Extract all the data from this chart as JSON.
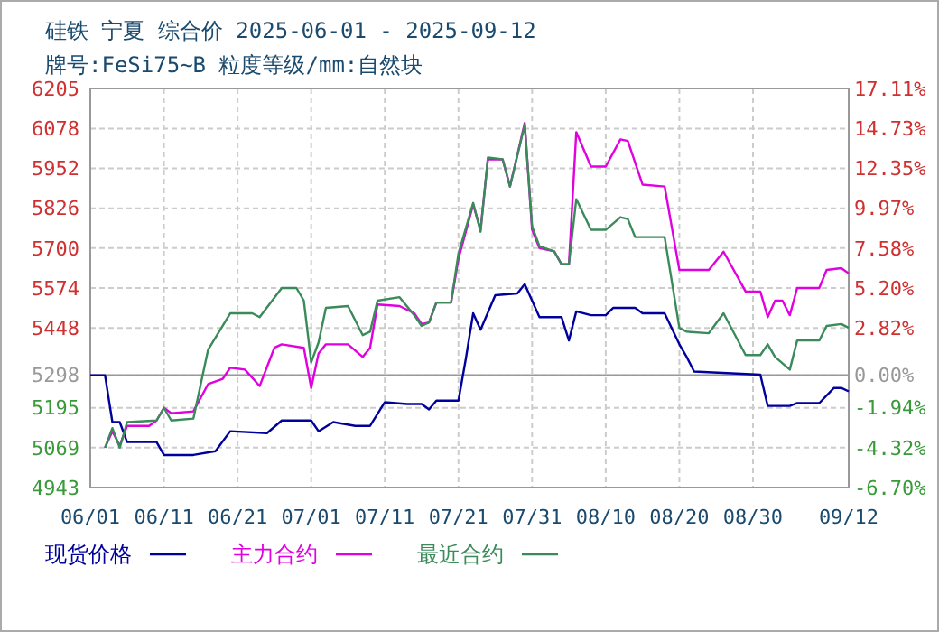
{
  "chart_data": {
    "type": "line",
    "title": "硅铁 宁夏 综合价 2025-06-01 - 2025-09-12",
    "subtitle": "牌号:FeSi75~B 粒度等级/mm:自然块",
    "xlim": [
      "2025-06-01",
      "2025-09-12"
    ],
    "xticks": [
      {
        "value": "2025-06-01",
        "label": "06/01"
      },
      {
        "value": "2025-06-11",
        "label": "06/11"
      },
      {
        "value": "2025-06-21",
        "label": "06/21"
      },
      {
        "value": "2025-07-01",
        "label": "07/01"
      },
      {
        "value": "2025-07-11",
        "label": "07/11"
      },
      {
        "value": "2025-07-21",
        "label": "07/21"
      },
      {
        "value": "2025-07-31",
        "label": "07/31"
      },
      {
        "value": "2025-08-10",
        "label": "08/10"
      },
      {
        "value": "2025-08-20",
        "label": "08/20"
      },
      {
        "value": "2025-08-30",
        "label": "08/30"
      },
      {
        "value": "2025-09-12",
        "label": "09/12"
      }
    ],
    "ylim": [
      4943,
      6205
    ],
    "yticks": [
      4943,
      5069,
      5195,
      5298,
      5448,
      5574,
      5700,
      5826,
      5952,
      6078,
      6205
    ],
    "y2lim": [
      -6.7,
      17.11
    ],
    "y2ticks": [
      {
        "value": -6.7,
        "label": "-6.70%"
      },
      {
        "value": -4.32,
        "label": "-4.32%"
      },
      {
        "value": -1.94,
        "label": "-1.94%"
      },
      {
        "value": 0,
        "label": "0.00%"
      },
      {
        "value": 2.82,
        "label": "2.82%"
      },
      {
        "value": 5.2,
        "label": "5.20%"
      },
      {
        "value": 7.58,
        "label": "7.58%"
      },
      {
        "value": 9.97,
        "label": "9.97%"
      },
      {
        "value": 12.35,
        "label": "12.35%"
      },
      {
        "value": 14.73,
        "label": "14.73%"
      },
      {
        "value": 17.11,
        "label": "17.11%"
      }
    ],
    "ref_lines": [
      {
        "axis": "y",
        "value": 5298,
        "color": "#999999"
      }
    ],
    "grid": true,
    "legend": "bottom",
    "line_style": "solid",
    "marker": "none",
    "series": [
      {
        "name": "现货价格",
        "color": "#00009c",
        "x": [
          "2025-06-01",
          "2025-06-03",
          "2025-06-04",
          "2025-06-05",
          "2025-06-06",
          "2025-06-10",
          "2025-06-11",
          "2025-06-15",
          "2025-06-18",
          "2025-06-20",
          "2025-06-25",
          "2025-06-27",
          "2025-07-01",
          "2025-07-02",
          "2025-07-04",
          "2025-07-07",
          "2025-07-09",
          "2025-07-11",
          "2025-07-14",
          "2025-07-16",
          "2025-07-17",
          "2025-07-18",
          "2025-07-21",
          "2025-07-22",
          "2025-07-23",
          "2025-07-24",
          "2025-07-26",
          "2025-07-29",
          "2025-07-30",
          "2025-08-01",
          "2025-08-04",
          "2025-08-05",
          "2025-08-06",
          "2025-08-08",
          "2025-08-10",
          "2025-08-11",
          "2025-08-14",
          "2025-08-15",
          "2025-08-18",
          "2025-08-20",
          "2025-08-21",
          "2025-08-22",
          "2025-08-31",
          "2025-09-01",
          "2025-09-04",
          "2025-09-05",
          "2025-09-08",
          "2025-09-10",
          "2025-09-11",
          "2025-09-12"
        ],
        "values": [
          5298,
          5298,
          5150,
          5150,
          5087,
          5087,
          5046,
          5046,
          5058,
          5121,
          5115,
          5155,
          5155,
          5121,
          5150,
          5138,
          5138,
          5213,
          5207,
          5207,
          5190,
          5218,
          5218,
          5350,
          5494,
          5442,
          5551,
          5557,
          5586,
          5482,
          5482,
          5408,
          5500,
          5488,
          5488,
          5511,
          5511,
          5494,
          5494,
          5396,
          5356,
          5310,
          5300,
          5201,
          5201,
          5210,
          5210,
          5258,
          5258,
          5247
        ]
      },
      {
        "name": "主力合约",
        "color": "#e000e0",
        "x": [
          "2025-06-03",
          "2025-06-04",
          "2025-06-05",
          "2025-06-06",
          "2025-06-09",
          "2025-06-10",
          "2025-06-11",
          "2025-06-12",
          "2025-06-15",
          "2025-06-17",
          "2025-06-19",
          "2025-06-20",
          "2025-06-22",
          "2025-06-24",
          "2025-06-26",
          "2025-06-27",
          "2025-06-30",
          "2025-07-01",
          "2025-07-02",
          "2025-07-03",
          "2025-07-06",
          "2025-07-08",
          "2025-07-09",
          "2025-07-10",
          "2025-07-13",
          "2025-07-15",
          "2025-07-16",
          "2025-07-17",
          "2025-07-18",
          "2025-07-20",
          "2025-07-21",
          "2025-07-23",
          "2025-07-24",
          "2025-07-25",
          "2025-07-27",
          "2025-07-28",
          "2025-07-30",
          "2025-07-31",
          "2025-08-01",
          "2025-08-03",
          "2025-08-04",
          "2025-08-05",
          "2025-08-06",
          "2025-08-08",
          "2025-08-10",
          "2025-08-12",
          "2025-08-13",
          "2025-08-15",
          "2025-08-18",
          "2025-08-20",
          "2025-08-24",
          "2025-08-26",
          "2025-08-29",
          "2025-08-31",
          "2025-09-01",
          "2025-09-02",
          "2025-09-03",
          "2025-09-04",
          "2025-09-05",
          "2025-09-08",
          "2025-09-09",
          "2025-09-11",
          "2025-09-12"
        ],
        "values": [
          5069,
          5121,
          5075,
          5138,
          5138,
          5155,
          5195,
          5178,
          5184,
          5270,
          5287,
          5322,
          5316,
          5264,
          5385,
          5396,
          5385,
          5258,
          5367,
          5396,
          5396,
          5356,
          5385,
          5522,
          5517,
          5494,
          5460,
          5465,
          5528,
          5528,
          5666,
          5838,
          5758,
          5981,
          5981,
          5895,
          6096,
          5758,
          5700,
          5690,
          5649,
          5649,
          6067,
          5958,
          5958,
          6044,
          6039,
          5901,
          5895,
          5631,
          5631,
          5689,
          5563,
          5563,
          5482,
          5534,
          5534,
          5488,
          5574,
          5574,
          5631,
          5637,
          5620
        ]
      },
      {
        "name": "最近合约",
        "color": "#3a8a5a",
        "x": [
          "2025-06-03",
          "2025-06-04",
          "2025-06-05",
          "2025-06-06",
          "2025-06-10",
          "2025-06-11",
          "2025-06-12",
          "2025-06-15",
          "2025-06-17",
          "2025-06-20",
          "2025-06-23",
          "2025-06-24",
          "2025-06-27",
          "2025-06-29",
          "2025-06-30",
          "2025-07-01",
          "2025-07-02",
          "2025-07-03",
          "2025-07-06",
          "2025-07-08",
          "2025-07-09",
          "2025-07-10",
          "2025-07-13",
          "2025-07-15",
          "2025-07-16",
          "2025-07-17",
          "2025-07-18",
          "2025-07-20",
          "2025-07-21",
          "2025-07-23",
          "2025-07-24",
          "2025-07-25",
          "2025-07-27",
          "2025-07-28",
          "2025-07-30",
          "2025-07-31",
          "2025-08-01",
          "2025-08-03",
          "2025-08-04",
          "2025-08-05",
          "2025-08-06",
          "2025-08-08",
          "2025-08-10",
          "2025-08-12",
          "2025-08-13",
          "2025-08-14",
          "2025-08-18",
          "2025-08-20",
          "2025-08-21",
          "2025-08-24",
          "2025-08-26",
          "2025-08-29",
          "2025-08-31",
          "2025-09-01",
          "2025-09-02",
          "2025-09-04",
          "2025-09-05",
          "2025-09-08",
          "2025-09-09",
          "2025-09-11",
          "2025-09-12"
        ],
        "values": [
          5069,
          5131,
          5069,
          5150,
          5155,
          5195,
          5155,
          5161,
          5379,
          5494,
          5494,
          5482,
          5574,
          5574,
          5534,
          5339,
          5402,
          5511,
          5517,
          5425,
          5436,
          5534,
          5545,
          5488,
          5454,
          5465,
          5528,
          5528,
          5683,
          5843,
          5752,
          5987,
          5981,
          5895,
          6090,
          5769,
          5706,
          5690,
          5649,
          5649,
          5855,
          5758,
          5758,
          5798,
          5792,
          5735,
          5735,
          5448,
          5436,
          5431,
          5494,
          5362,
          5362,
          5396,
          5356,
          5316,
          5408,
          5408,
          5454,
          5460,
          5448
        ]
      }
    ]
  }
}
